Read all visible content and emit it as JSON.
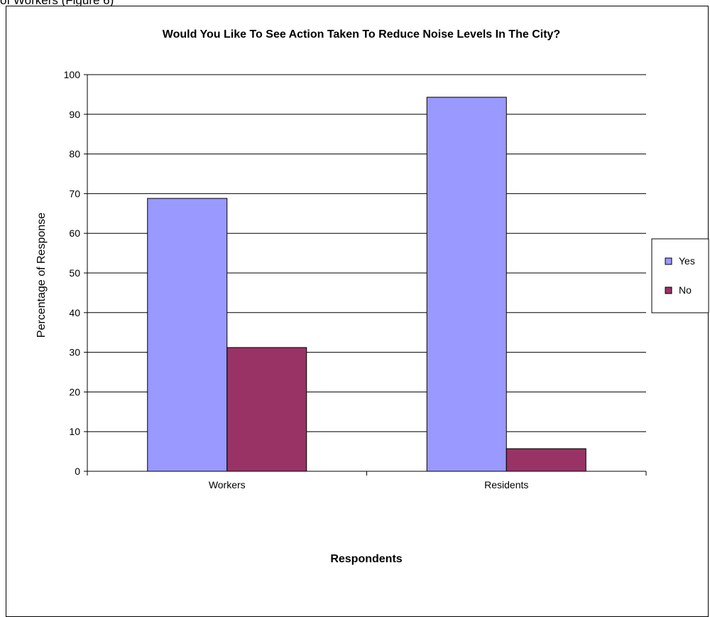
{
  "caption": "of Workers (Figure 6)",
  "chart_data": {
    "type": "bar",
    "title": "Would You Like To See Action Taken To Reduce Noise Levels In The City?",
    "xlabel": "Respondents",
    "ylabel": "Percentage of Response",
    "categories": [
      "Workers",
      "Residents"
    ],
    "series": [
      {
        "name": "Yes",
        "values": [
          68.8,
          94.3
        ],
        "color": "#9999ff"
      },
      {
        "name": "No",
        "values": [
          31.2,
          5.7
        ],
        "color": "#993366"
      }
    ],
    "ylim": [
      0,
      100
    ],
    "yticks": [
      0,
      10,
      20,
      30,
      40,
      50,
      60,
      70,
      80,
      90,
      100
    ],
    "grid": true,
    "legend": "right"
  }
}
